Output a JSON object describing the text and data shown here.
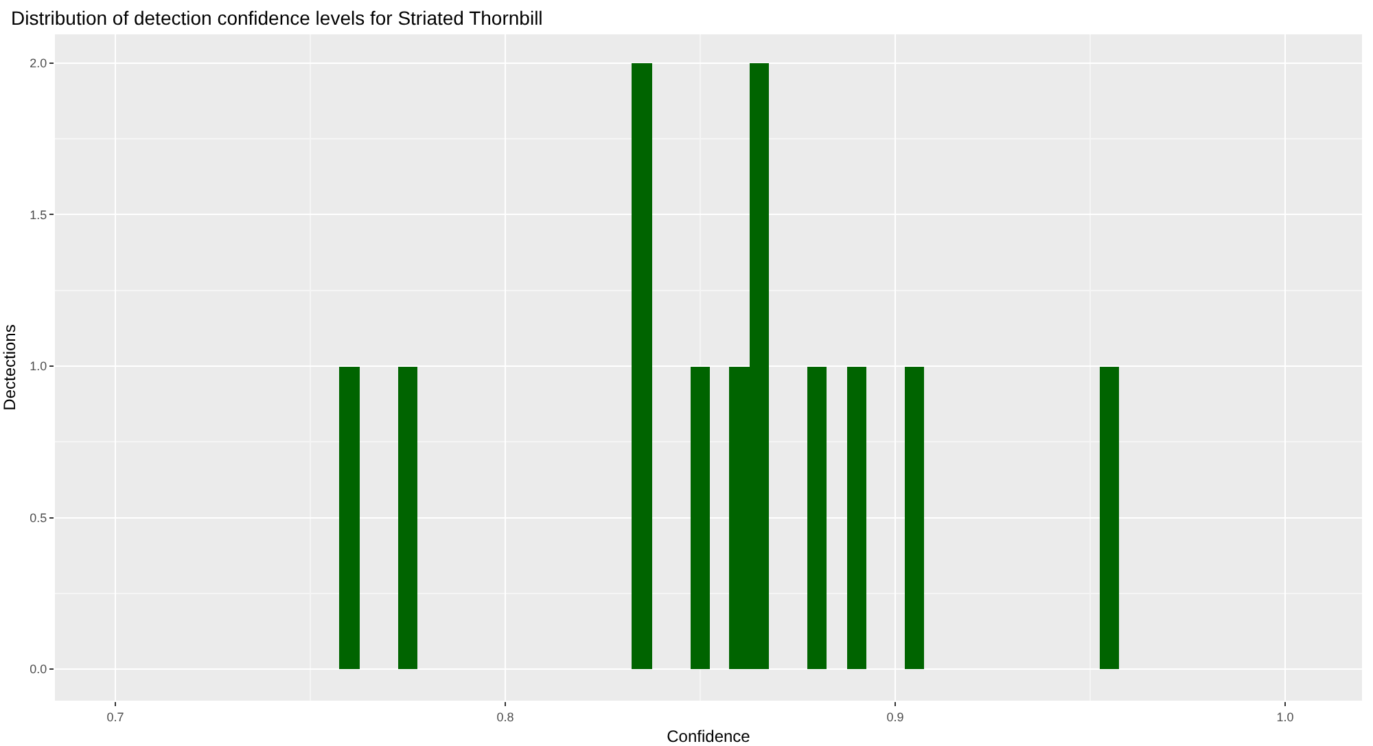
{
  "chart_data": {
    "type": "histogram",
    "title": "Distribution of detection confidence levels for Striated Thornbill",
    "xlabel": "Confidence",
    "ylabel": "Dectections",
    "bins": [
      0.7575,
      0.7625,
      0.7675,
      0.7725,
      0.7775,
      0.7825,
      0.7875,
      0.7925,
      0.7975,
      0.8025,
      0.8075,
      0.8125,
      0.8175,
      0.8225,
      0.8275,
      0.8325,
      0.8375,
      0.8425,
      0.8475,
      0.8525,
      0.8575,
      0.8625,
      0.8675,
      0.8725,
      0.8775,
      0.8825,
      0.8875,
      0.8925,
      0.8975,
      0.9025,
      0.9075,
      0.9125,
      0.9175,
      0.9225,
      0.9275,
      0.9325,
      0.9375,
      0.9425,
      0.9475,
      0.9525,
      0.9575
    ],
    "values": [
      1,
      0,
      0,
      1,
      0,
      0,
      0,
      0,
      0,
      0,
      0,
      0,
      0,
      0,
      0,
      2,
      0,
      0,
      1,
      0,
      1,
      2,
      0,
      0,
      1,
      0,
      1,
      0,
      0,
      1,
      0,
      0,
      0,
      0,
      0,
      0,
      0,
      0,
      0,
      1
    ],
    "color": "#006400",
    "xlim": [
      0.6845,
      1.0197
    ],
    "xticks": [
      {
        "value": 0.7,
        "label": "0.7"
      },
      {
        "value": 0.8,
        "label": "0.8"
      },
      {
        "value": 0.9,
        "label": "0.9"
      },
      {
        "value": 1.0,
        "label": "1.0"
      }
    ],
    "ylim": [
      -0.104,
      2.095
    ],
    "yticks": [
      {
        "value": 0,
        "label": "0.0"
      },
      {
        "value": 0.5,
        "label": "0.5"
      },
      {
        "value": 1,
        "label": "1.0"
      },
      {
        "value": 1.5,
        "label": "1.5"
      },
      {
        "value": 2,
        "label": "2.0"
      }
    ],
    "grid": true
  }
}
